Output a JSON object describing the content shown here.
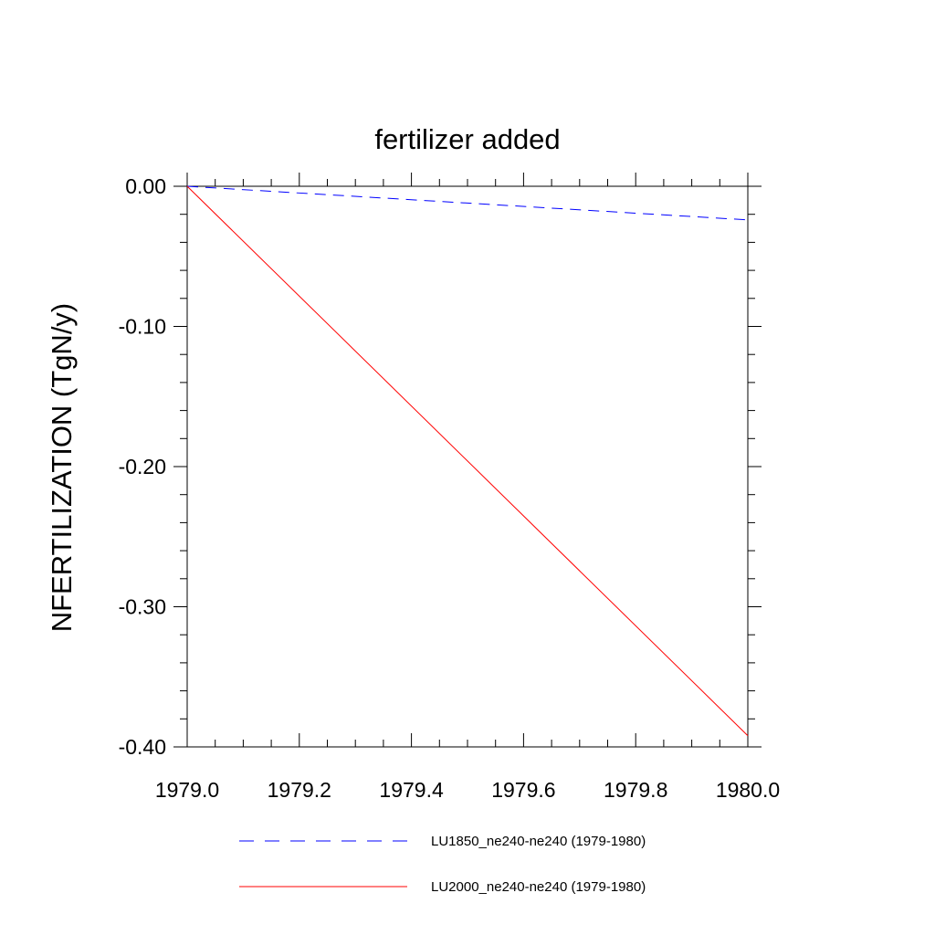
{
  "chart_data": {
    "type": "line",
    "title": "fertilizer added",
    "ylabel": "NFERTILIZATION  (TgN/y)",
    "xlabel": "",
    "xlim": [
      1979.0,
      1980.0
    ],
    "ylim": [
      -0.4,
      0.0
    ],
    "x_ticks": [
      1979.0,
      1979.2,
      1979.4,
      1979.6,
      1979.8,
      1980.0
    ],
    "x_tick_labels": [
      "1979.0",
      "1979.2",
      "1979.4",
      "1979.6",
      "1979.8",
      "1980.0"
    ],
    "y_ticks": [
      0.0,
      -0.1,
      -0.2,
      -0.3,
      -0.4
    ],
    "y_tick_labels": [
      "0.00",
      "-0.10",
      "-0.20",
      "-0.30",
      "-0.40"
    ],
    "grid": false,
    "legend_position": "bottom",
    "series": [
      {
        "name": "LU1850_ne240-ne240 (1979-1980)",
        "color": "#0000ff",
        "dash": "dashed",
        "x": [
          1979.0,
          1980.0
        ],
        "y": [
          0.0,
          -0.024
        ]
      },
      {
        "name": "LU2000_ne240-ne240 (1979-1980)",
        "color": "#ff0000",
        "dash": "solid",
        "x": [
          1979.0,
          1980.0
        ],
        "y": [
          0.0,
          -0.392
        ]
      }
    ]
  }
}
